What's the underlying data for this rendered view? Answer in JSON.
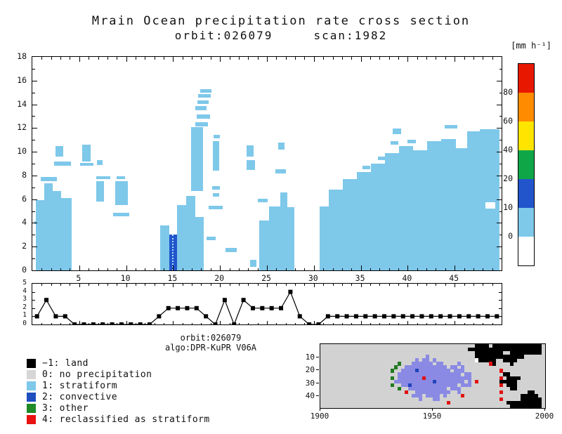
{
  "title": {
    "line1": "Mrain Ocean precipitation rate cross section",
    "line2": "orbit:026079     scan:1982"
  },
  "annotations": {
    "orbit": "orbit:026079",
    "algo": "algo:DPR-KuPR V06A"
  },
  "colorbar": {
    "unit_label": "[mm h⁻¹]",
    "segments_top_to_bottom": [
      {
        "color": "#e81800",
        "label": "80"
      },
      {
        "color": "#ff8c00",
        "label": "60"
      },
      {
        "color": "#ffe400",
        "label": "40"
      },
      {
        "color": "#0fa648",
        "label": "20"
      },
      {
        "color": "#2255cc",
        "label": "10"
      },
      {
        "color": "#7ec8ea",
        "label": "0"
      },
      {
        "color": "#ffffff",
        "label": ""
      }
    ]
  },
  "legend": {
    "items": [
      {
        "swatch": "#000000",
        "label": "−1: land"
      },
      {
        "swatch": "#d6d6d6",
        "label": "0: no precipitation"
      },
      {
        "swatch": "#7ec8ea",
        "label": "1: stratiform"
      },
      {
        "swatch": "#1d4fc0",
        "label": "2: convective"
      },
      {
        "swatch": "#1e8a28",
        "label": "3: other"
      },
      {
        "swatch": "#e81212",
        "label": "4: reclassified as stratiform"
      }
    ]
  },
  "chart_data": [
    {
      "name": "precipitation_cross_section",
      "type": "heatmap",
      "title": "Mrain Ocean precipitation rate cross section",
      "subtitle": "orbit:026079 scan:1982",
      "unit": "mm h-1",
      "xlim": [
        0,
        50
      ],
      "ylim": [
        0,
        18
      ],
      "x_ticks": [
        5,
        10,
        15,
        20,
        25,
        30,
        35,
        40,
        45
      ],
      "y_ticks": [
        0,
        2,
        4,
        6,
        8,
        10,
        12,
        14,
        16,
        18
      ],
      "value_classes": {
        "0": "no rain (white)",
        "1": "0-10 mm/h",
        "2": "10-20 mm/h"
      },
      "palette": {
        "0": "#ffffff",
        "1": "#7ec8ea",
        "2": "#2255cc"
      },
      "scan_marker_x": 15,
      "cells": [
        [
          0.2,
          0.5,
          3.9,
          4.15,
          1
        ],
        [
          0.4,
          1.3,
          0,
          5.9,
          1
        ],
        [
          1.3,
          2.2,
          0,
          7.35,
          1
        ],
        [
          2.2,
          3.1,
          0,
          6.7,
          1
        ],
        [
          3.1,
          4.2,
          0,
          6.1,
          1
        ],
        [
          0.9,
          2.6,
          7.5,
          7.85,
          1
        ],
        [
          2.3,
          4.1,
          8.8,
          9.15,
          1
        ],
        [
          2.5,
          3.3,
          9.6,
          10.5,
          1
        ],
        [
          5.3,
          6.2,
          9.2,
          10.6,
          1
        ],
        [
          5.1,
          6.5,
          8.8,
          9.05,
          1
        ],
        [
          6.8,
          7.6,
          5.8,
          7.5,
          1
        ],
        [
          6.8,
          8.3,
          7.7,
          7.95,
          1
        ],
        [
          6.9,
          7.5,
          8.9,
          9.3,
          1
        ],
        [
          8.8,
          10.2,
          5.5,
          7.5,
          1
        ],
        [
          8.6,
          10.3,
          4.55,
          4.85,
          1
        ],
        [
          9.0,
          9.9,
          7.7,
          7.95,
          1
        ],
        [
          13.6,
          14.6,
          0,
          3.8,
          1
        ],
        [
          14.6,
          15.4,
          0,
          3.0,
          2
        ],
        [
          15.4,
          16.4,
          0,
          5.5,
          1
        ],
        [
          16.4,
          17.4,
          0,
          6.3,
          1
        ],
        [
          17.4,
          18.3,
          0,
          4.5,
          1
        ],
        [
          16.9,
          18.2,
          6.7,
          12.1,
          1
        ],
        [
          17.4,
          18.7,
          12.15,
          12.5,
          1
        ],
        [
          17.5,
          18.9,
          12.8,
          13.15,
          1
        ],
        [
          17.4,
          18.6,
          13.5,
          13.85,
          1
        ],
        [
          17.6,
          18.8,
          14.05,
          14.3,
          1
        ],
        [
          17.7,
          19.0,
          14.55,
          14.85,
          1
        ],
        [
          17.9,
          19.1,
          15.0,
          15.25,
          1
        ],
        [
          19.2,
          19.9,
          8.4,
          10.9,
          1
        ],
        [
          19.2,
          19.9,
          6.2,
          6.5,
          1
        ],
        [
          19.15,
          19.95,
          6.8,
          7.1,
          1
        ],
        [
          19.3,
          20.0,
          11.15,
          11.45,
          1
        ],
        [
          18.8,
          20.3,
          5.15,
          5.45,
          1
        ],
        [
          18.6,
          19.5,
          2.55,
          2.85,
          1
        ],
        [
          20.6,
          21.8,
          1.55,
          1.9,
          1
        ],
        [
          22.85,
          23.6,
          9.6,
          10.55,
          1
        ],
        [
          22.8,
          23.7,
          8.45,
          9.3,
          1
        ],
        [
          23.2,
          23.9,
          0.3,
          0.9,
          1
        ],
        [
          24.2,
          25.2,
          0,
          4.2,
          1
        ],
        [
          25.2,
          26.4,
          0,
          5.4,
          1
        ],
        [
          26.4,
          27.2,
          0,
          6.6,
          1
        ],
        [
          27.2,
          27.9,
          0,
          5.3,
          1
        ],
        [
          24.0,
          25.1,
          5.75,
          6.05,
          1
        ],
        [
          25.9,
          27.0,
          8.2,
          8.5,
          1
        ],
        [
          26.2,
          26.9,
          10.2,
          10.8,
          1
        ],
        [
          30.6,
          31.6,
          0,
          5.4,
          1
        ],
        [
          31.6,
          33.1,
          0,
          6.8,
          1
        ],
        [
          33.1,
          34.6,
          0,
          7.7,
          1
        ],
        [
          34.6,
          36.1,
          0,
          8.3,
          1
        ],
        [
          36.1,
          37.6,
          0,
          9.0,
          1
        ],
        [
          37.6,
          39.1,
          0,
          9.9,
          1
        ],
        [
          39.1,
          40.6,
          0,
          10.5,
          1
        ],
        [
          40.6,
          42.1,
          0,
          10.1,
          1
        ],
        [
          42.1,
          43.6,
          0,
          10.9,
          1
        ],
        [
          43.6,
          45.1,
          0,
          11.1,
          1
        ],
        [
          45.1,
          46.3,
          0,
          10.3,
          1
        ],
        [
          46.3,
          47.7,
          0,
          11.7,
          1
        ],
        [
          47.7,
          49.8,
          0,
          11.9,
          1
        ],
        [
          35.2,
          36.0,
          8.55,
          8.85,
          1
        ],
        [
          36.8,
          37.6,
          9.3,
          9.6,
          1
        ],
        [
          38.2,
          39.0,
          10.6,
          10.9,
          1
        ],
        [
          38.4,
          39.3,
          11.5,
          11.95,
          1
        ],
        [
          40.0,
          40.9,
          10.7,
          11.0,
          1
        ],
        [
          43.9,
          45.3,
          11.95,
          12.25,
          1
        ],
        [
          48.3,
          49.3,
          5.2,
          5.75,
          0
        ]
      ]
    },
    {
      "name": "rain_type_along_scan",
      "type": "line",
      "marker": "square",
      "color": "#000000",
      "ylim": [
        0,
        5
      ],
      "y_ticks": [
        0,
        1,
        2,
        3,
        4,
        5
      ],
      "values": [
        1,
        3,
        1,
        1,
        0,
        0,
        0,
        0,
        0,
        0,
        0,
        0,
        0,
        1,
        2,
        2,
        2,
        2,
        1,
        0,
        3,
        0,
        3,
        2,
        2,
        2,
        2,
        4,
        1,
        0,
        0,
        1,
        1,
        1,
        1,
        1,
        1,
        1,
        1,
        1,
        1,
        1,
        1,
        1,
        1,
        1,
        1,
        1,
        1,
        1
      ]
    },
    {
      "name": "rain_type_map",
      "type": "heatmap",
      "xlim": [
        1900,
        2000
      ],
      "x_ticks": [
        1900,
        1950,
        2000
      ],
      "ylim": [
        0,
        49
      ],
      "y_ticks": [
        10,
        20,
        30,
        40
      ],
      "background": "#d2d2d2",
      "palette": {
        "k": "#000000",
        "b": "#8a8ae4",
        "B": "#2244bb",
        "g": "#217a21",
        "r": "#e01212",
        "w": "#ffffff"
      },
      "rows": [
        "............................................kkkk.kkkkkkkkkkkkkk",
        "..........................................kkkkkkkkkkkkkkkkkkkkk",
        "............................................kkkkkkkk..kkkkkkkkk",
        "..............................b.............kkkkkkkkkkkkkk.....",
        "...........................b.bb.b...........wkkkkk..kkkk.......",
        "......................g...bbbbbb.bb....b........rk....k........",
        ".....................g..bbbbbbbbbbbb.bb.b......................",
        "....................g..bbbbBbbbbbbbbb.bbb..........r...........",
        "......................bbbbbbbbbbbbbbbbbb.bb.........kk.........",
        "....................g.bbbbbbbrbbbbbbbbbbbbb........r.kkkk......",
        ".....................bbbbbbbbbbbBbbbbbbbb.b.r......kkkkk.......",
        "....................g..bbBbbbbbbbbbbbbb.bbb........r.kkk.......",
        "......................g..bbbbbbbbbbb.bbb..............kk.......",
        "........................r..bbbbbbbbbb..b...........r.......kk..",
        "..........................bbb.bbbb.b....r................kkkkk.",
        "............................b...bb.................r.....kkkkkk",
        "....................................r................kkkkkkkkkk",
        "......................................................kkkkkkkkk"
      ]
    }
  ]
}
